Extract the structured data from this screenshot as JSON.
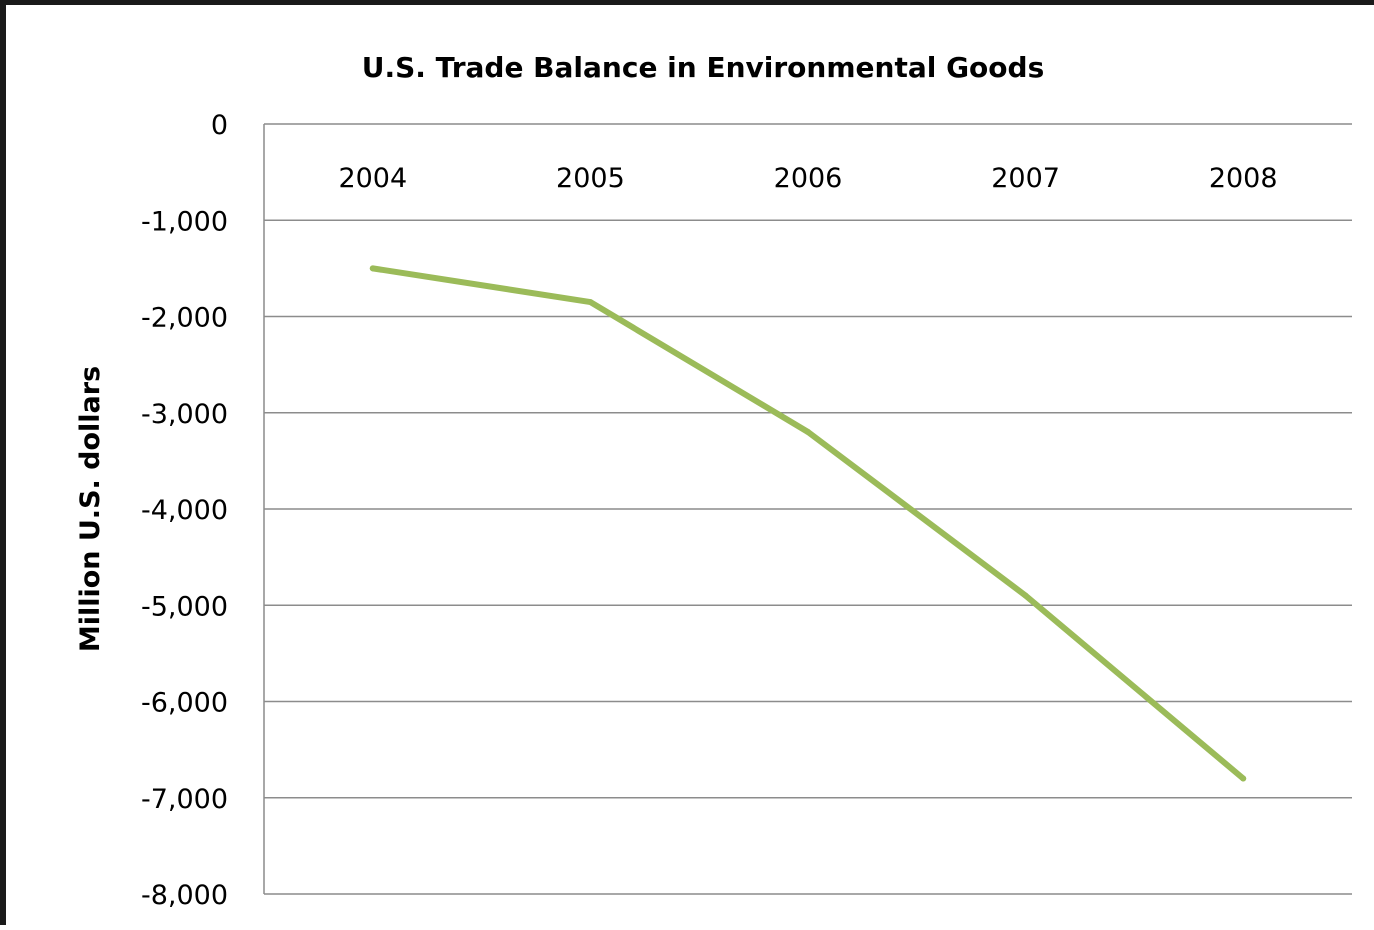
{
  "chart_data": {
    "type": "line",
    "title": "U.S. Trade Balance in Environmental Goods",
    "xlabel": "",
    "ylabel": "Million U.S. dollars",
    "categories": [
      "2004",
      "2005",
      "2006",
      "2007",
      "2008"
    ],
    "series": [
      {
        "values": [
          -1500,
          -1850,
          -3200,
          -4900,
          -6800
        ],
        "color": "#9bbb59"
      }
    ],
    "ylim": [
      -8000,
      0
    ],
    "yticks": [
      0,
      -1000,
      -2000,
      -3000,
      -4000,
      -5000,
      -6000,
      -7000,
      -8000
    ],
    "ytick_labels": [
      "0",
      "-1,000",
      "-2,000",
      "-3,000",
      "-4,000",
      "-5,000",
      "-6,000",
      "-7,000",
      "-8,000"
    ],
    "x_tick_position": "top",
    "grid": true,
    "legend": "none"
  }
}
